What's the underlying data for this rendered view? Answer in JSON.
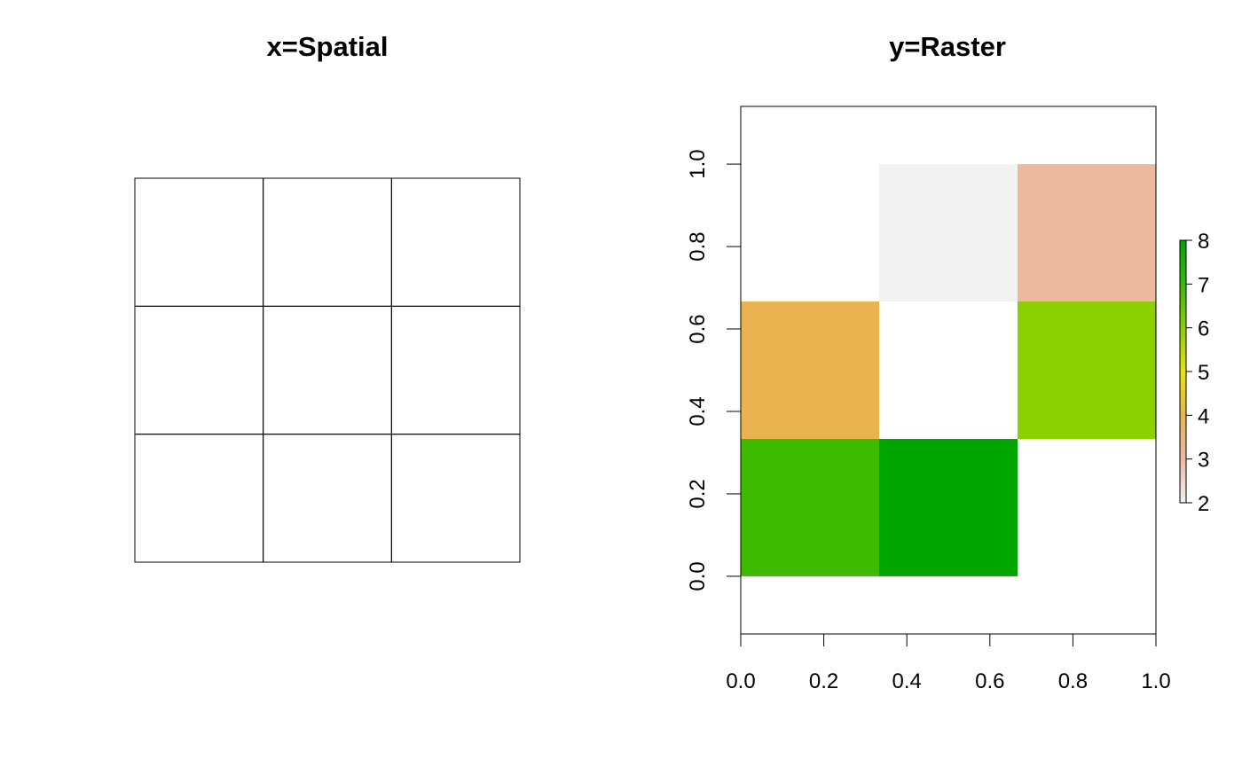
{
  "chart_data": [
    {
      "type": "heatmap",
      "title": "x=Spatial",
      "grid": {
        "rows": 3,
        "cols": 3
      },
      "cells_filled": false,
      "xlim": [
        0,
        1
      ],
      "ylim": [
        0,
        1
      ]
    },
    {
      "type": "heatmap",
      "title": "y=Raster",
      "xlabel": "",
      "ylabel": "",
      "xlim": [
        0,
        1
      ],
      "ylim": [
        -0.14,
        1.14
      ],
      "x_ticks": [
        "0.0",
        "0.2",
        "0.4",
        "0.6",
        "0.8",
        "1.0"
      ],
      "y_ticks": [
        "0.0",
        "0.2",
        "0.4",
        "0.6",
        "0.8",
        "1.0"
      ],
      "grid": false,
      "cell_values": [
        [
          null,
          2,
          3
        ],
        [
          4,
          null,
          6
        ],
        [
          7,
          8,
          null
        ]
      ],
      "value_colors": {
        "2": "#f2f2f2",
        "3": "#ecb99f",
        "4": "#e9b44f",
        "6": "#8bd000",
        "7": "#3cbb00",
        "8": "#00a600"
      },
      "legend": {
        "placement": "right",
        "range": [
          2,
          8
        ],
        "labels": [
          "2",
          "3",
          "4",
          "5",
          "6",
          "7",
          "8"
        ],
        "colors": [
          "#f2f2f2",
          "#ecb99f",
          "#e9b44f",
          "#e6e600",
          "#8bd000",
          "#3cbb00",
          "#00a600"
        ]
      }
    }
  ]
}
